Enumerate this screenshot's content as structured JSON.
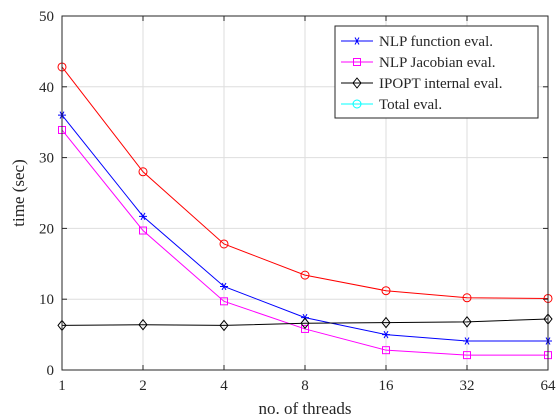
{
  "chart_data": {
    "type": "line",
    "title": "",
    "xlabel": "no. of threads",
    "ylabel": "time (sec)",
    "x_categories": [
      "1",
      "2",
      "4",
      "8",
      "16",
      "32",
      "64"
    ],
    "x_scale": "log2",
    "ylim": [
      0,
      50
    ],
    "yticks": [
      0,
      10,
      20,
      30,
      40,
      50
    ],
    "grid": true,
    "legend_position": "top-right",
    "series": [
      {
        "name": "NLP function eval.",
        "color": "#0000ff",
        "marker": "asterisk",
        "values": [
          36.0,
          21.7,
          11.8,
          7.4,
          5.0,
          4.1,
          4.1
        ]
      },
      {
        "name": "NLP Jacobian eval.",
        "color": "#ff00ff",
        "marker": "square",
        "values": [
          33.9,
          19.7,
          9.7,
          5.8,
          2.8,
          2.1,
          2.1
        ]
      },
      {
        "name": "IPOPT internal eval.",
        "color": "#000000",
        "marker": "diamond",
        "values": [
          6.3,
          6.4,
          6.3,
          6.6,
          6.7,
          6.8,
          7.2
        ]
      },
      {
        "name": "Total eval.",
        "color": "#00ffff",
        "marker": "circle",
        "values": null
      },
      {
        "name": "",
        "color": "#ff0000",
        "marker": "circle",
        "values": [
          42.8,
          28.0,
          17.8,
          13.4,
          11.2,
          10.2,
          10.1
        ]
      }
    ]
  }
}
